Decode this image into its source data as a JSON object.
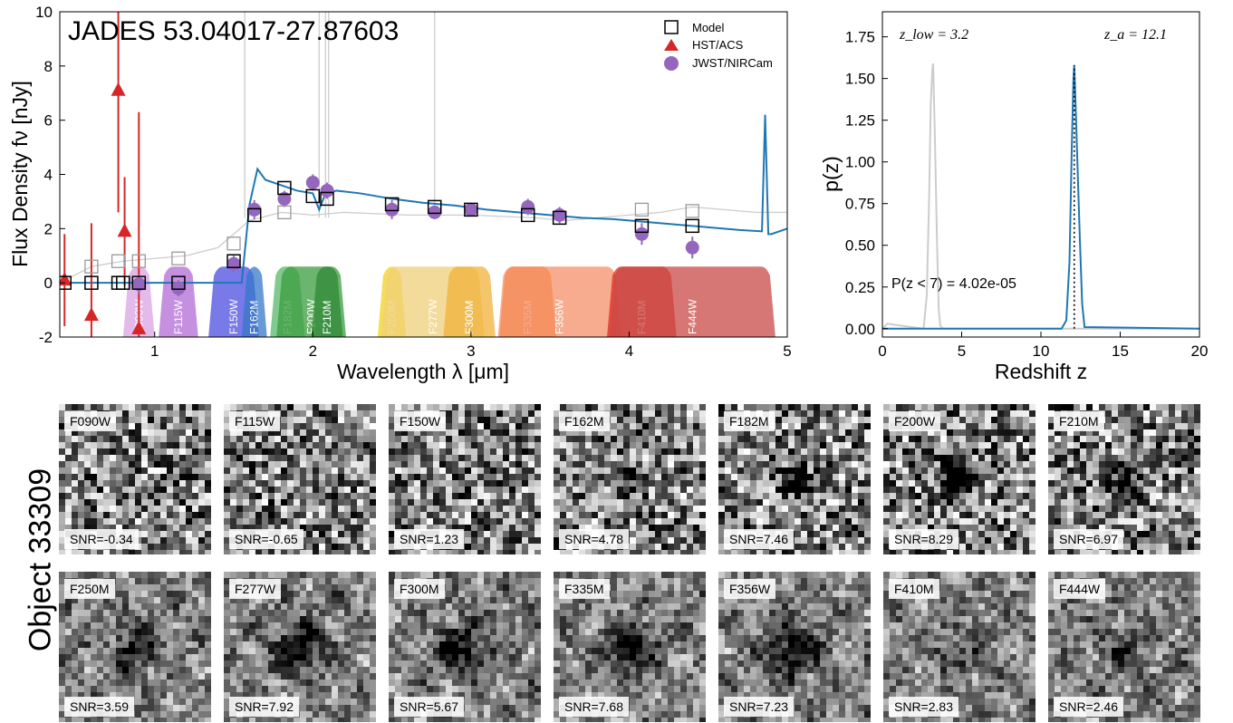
{
  "sed": {
    "title": "JADES 53.04017-27.87603",
    "xlabel": "Wavelength λ [μm]",
    "ylabel": "Flux Density fν [nJy]",
    "legend": {
      "model": "Model",
      "hst": "HST/ACS",
      "jwst": "JWST/NIRCam"
    }
  },
  "pz": {
    "xlabel": "Redshift z",
    "ylabel": "p(z)",
    "zlow_text": "z_low = 3.2",
    "za_text": "z_a = 12.1",
    "pz_text": "P(z < 7) = 4.02e-05"
  },
  "object_label": "Object 33309",
  "chart_data": [
    {
      "type": "scatter",
      "title": "JADES 53.04017-27.87603",
      "xlabel": "Wavelength λ [μm]",
      "ylabel": "Flux Density fν [nJy]",
      "xlim": [
        0.4,
        5
      ],
      "ylim": [
        -2,
        10
      ],
      "xticks": [
        1,
        2,
        3,
        4,
        5
      ],
      "yticks": [
        -2,
        0,
        2,
        4,
        6,
        8,
        10
      ],
      "grid": false,
      "legend_position": "top-right",
      "colors": {
        "model": "#000000",
        "hst": "#d62728",
        "jwst": "#9467bd",
        "best_sed": "#1f77b4",
        "alt_sed": "#cccccc"
      },
      "series": [
        {
          "name": "Model",
          "marker": "square",
          "x": [
            0.43,
            0.6,
            0.77,
            0.8,
            0.9,
            1.15,
            1.5,
            1.63,
            1.82,
            2.0,
            2.09,
            2.5,
            2.77,
            3.0,
            3.36,
            3.56,
            4.08,
            4.4
          ],
          "y": [
            0.0,
            0.0,
            0.0,
            0.0,
            0.0,
            0.0,
            0.8,
            2.5,
            3.5,
            3.2,
            3.1,
            2.9,
            2.8,
            2.7,
            2.5,
            2.4,
            2.1,
            2.1
          ]
        },
        {
          "name": "HST/ACS",
          "marker": "triangle",
          "x": [
            0.43,
            0.6,
            0.77,
            0.81,
            0.9
          ],
          "y": [
            0.1,
            -1.2,
            7.1,
            1.9,
            -1.7
          ],
          "yerr": [
            1.7,
            3.4,
            4.5,
            2.0,
            8.0
          ]
        },
        {
          "name": "JWST/NIRCam",
          "marker": "circle",
          "x": [
            0.9,
            1.15,
            1.5,
            1.63,
            1.82,
            2.0,
            2.09,
            2.5,
            2.77,
            3.0,
            3.36,
            3.56,
            4.08,
            4.4
          ],
          "y": [
            -0.05,
            -0.2,
            0.7,
            2.7,
            3.1,
            3.7,
            3.4,
            2.7,
            2.6,
            2.7,
            2.8,
            2.5,
            1.8,
            1.3
          ],
          "yerr": [
            0.35,
            0.3,
            0.3,
            0.35,
            0.3,
            0.3,
            0.3,
            0.35,
            0.25,
            0.25,
            0.3,
            0.3,
            0.4,
            0.4
          ]
        }
      ],
      "best_sed": {
        "x": [
          0.4,
          1.55,
          1.6,
          1.65,
          1.7,
          1.8,
          1.9,
          2.0,
          2.04,
          2.08,
          2.15,
          2.3,
          2.5,
          2.7,
          2.9,
          3.1,
          3.3,
          3.5,
          3.7,
          3.9,
          4.1,
          4.3,
          4.5,
          4.7,
          4.84,
          4.86,
          4.88,
          4.9,
          5.0
        ],
        "y": [
          0.0,
          0.0,
          2.9,
          4.2,
          3.8,
          3.6,
          3.4,
          3.3,
          2.7,
          3.3,
          3.4,
          3.3,
          3.1,
          2.95,
          2.85,
          2.7,
          2.6,
          2.5,
          2.4,
          2.35,
          2.25,
          2.15,
          2.05,
          1.95,
          1.9,
          6.2,
          1.8,
          1.8,
          2.0
        ]
      },
      "alt_sed": {
        "x": [
          0.4,
          0.6,
          0.8,
          1.0,
          1.2,
          1.4,
          1.6,
          1.8,
          2.0,
          2.2,
          2.4,
          2.6,
          2.8,
          3.0,
          3.2,
          3.4,
          3.6,
          3.8,
          4.0,
          4.2,
          4.4,
          4.6,
          4.8,
          5.0
        ],
        "y": [
          0.0,
          0.6,
          0.8,
          0.9,
          1.0,
          1.3,
          2.3,
          2.6,
          2.5,
          2.6,
          2.55,
          2.5,
          2.5,
          2.5,
          2.45,
          2.4,
          2.3,
          2.4,
          2.5,
          2.6,
          2.8,
          2.7,
          2.6,
          2.6
        ]
      },
      "filters": [
        {
          "name": "F090W",
          "center": 0.9,
          "width": 0.2,
          "color": "#d9a3e3"
        },
        {
          "name": "F115W",
          "center": 1.15,
          "width": 0.25,
          "color": "#b36bd6"
        },
        {
          "name": "F150W",
          "center": 1.5,
          "width": 0.32,
          "color": "#4b4de0"
        },
        {
          "name": "F162M",
          "center": 1.63,
          "width": 0.16,
          "color": "#3578c9"
        },
        {
          "name": "F182M",
          "center": 1.84,
          "width": 0.22,
          "color": "#57b86a"
        },
        {
          "name": "F200W",
          "center": 1.99,
          "width": 0.44,
          "color": "#3b9c3f"
        },
        {
          "name": "F210M",
          "center": 2.09,
          "width": 0.2,
          "color": "#2f8a35"
        },
        {
          "name": "F250M",
          "center": 2.5,
          "width": 0.18,
          "color": "#f2d31b"
        },
        {
          "name": "F277W",
          "center": 2.76,
          "width": 0.65,
          "color": "#efcf7a"
        },
        {
          "name": "F300M",
          "center": 2.99,
          "width": 0.33,
          "color": "#f0b23a"
        },
        {
          "name": "F335M",
          "center": 3.36,
          "width": 0.36,
          "color": "#f27c1a"
        },
        {
          "name": "F356W",
          "center": 3.56,
          "width": 0.78,
          "color": "#f4906a"
        },
        {
          "name": "F410M",
          "center": 4.08,
          "width": 0.44,
          "color": "#e02b22"
        },
        {
          "name": "F444W",
          "center": 4.4,
          "width": 1.05,
          "color": "#c94a47"
        }
      ]
    },
    {
      "type": "line",
      "xlabel": "Redshift z",
      "ylabel": "p(z)",
      "xlim": [
        0,
        20
      ],
      "ylim": [
        -0.05,
        1.9
      ],
      "xticks": [
        0,
        5,
        10,
        15,
        20
      ],
      "yticks": [
        0.0,
        0.25,
        0.5,
        0.75,
        1.0,
        1.25,
        1.5,
        1.75
      ],
      "grid": false,
      "series": [
        {
          "color": "#cccccc",
          "x": [
            0,
            0.3,
            2.6,
            2.8,
            2.95,
            3.05,
            3.15,
            3.2,
            3.3,
            3.45,
            3.55,
            3.65,
            3.8,
            20
          ],
          "y": [
            0,
            0.03,
            0,
            0.2,
            0.8,
            1.35,
            1.55,
            1.59,
            1.2,
            0.5,
            0.12,
            0.02,
            0,
            0
          ]
        },
        {
          "color": "#1f77b4",
          "x": [
            0,
            11.3,
            11.6,
            11.8,
            11.95,
            12.05,
            12.1,
            12.15,
            12.3,
            12.45,
            12.6,
            12.75,
            20
          ],
          "y": [
            0,
            0,
            0.05,
            0.4,
            1.1,
            1.5,
            1.58,
            1.45,
            1.0,
            0.55,
            0.15,
            0.01,
            0
          ]
        }
      ],
      "vline": {
        "x": 12.1,
        "style": "dotted",
        "color": "#000000"
      }
    }
  ],
  "cutouts": {
    "rows": [
      [
        {
          "band": "F090W",
          "snr": "SNR=-0.34",
          "seed": 11,
          "blob": 0.0
        },
        {
          "band": "F115W",
          "snr": "SNR=-0.65",
          "seed": 23,
          "blob": 0.0
        },
        {
          "band": "F150W",
          "snr": "SNR=1.23",
          "seed": 37,
          "blob": 0.15
        },
        {
          "band": "F162M",
          "snr": "SNR=4.78",
          "seed": 41,
          "blob": 0.5
        },
        {
          "band": "F182M",
          "snr": "SNR=7.46",
          "seed": 53,
          "blob": 0.8
        },
        {
          "band": "F200W",
          "snr": "SNR=8.29",
          "seed": 67,
          "blob": 0.85
        },
        {
          "band": "F210M",
          "snr": "SNR=6.97",
          "seed": 71,
          "blob": 0.75
        }
      ],
      [
        {
          "band": "F250M",
          "snr": "SNR=3.59",
          "seed": 83,
          "blob": 0.5
        },
        {
          "band": "F277W",
          "snr": "SNR=7.92",
          "seed": 97,
          "blob": 0.8
        },
        {
          "band": "F300M",
          "snr": "SNR=5.67",
          "seed": 101,
          "blob": 0.65
        },
        {
          "band": "F335M",
          "snr": "SNR=7.68",
          "seed": 113,
          "blob": 0.8
        },
        {
          "band": "F356W",
          "snr": "SNR=7.23",
          "seed": 127,
          "blob": 0.75
        },
        {
          "band": "F410M",
          "snr": "SNR=2.83",
          "seed": 131,
          "blob": 0.3
        },
        {
          "band": "F444W",
          "snr": "SNR=2.46",
          "seed": 139,
          "blob": 0.3
        }
      ]
    ]
  }
}
